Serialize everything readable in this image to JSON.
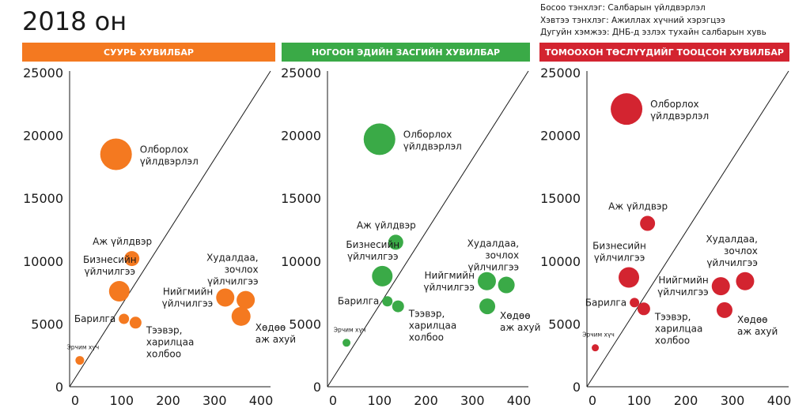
{
  "title": "2018 он",
  "legend_notes": {
    "vertical_axis": "Босоо тэнхлэг: Салбарын үйлдвэрлэл",
    "horizontal_axis": "Хэвтээ тэнхлэг: Ажиллах хүчний хэрэгцээ",
    "circle_size": "Дугуйн хэмжээ: ДНБ-д эзлэх тухайн салбарын хувь"
  },
  "chart_data": [
    {
      "type": "scatter",
      "title": "СУУРЬ ХУВИЛБАР",
      "header_color": "#f47920",
      "point_color": "#f47920",
      "xlim": [
        0,
        400
      ],
      "ylim": [
        0,
        25000
      ],
      "xticks": [
        0,
        100,
        200,
        300,
        400
      ],
      "yticks": [
        0,
        5000,
        10000,
        15000,
        20000,
        25000
      ],
      "diagonal": true,
      "points": [
        {
          "label": "Олборлох\nүйлдвэрлэл",
          "x": 88,
          "y": 18500,
          "size": 20,
          "label_pos": "right"
        },
        {
          "label": "Аж үйлдвэр",
          "x": 122,
          "y": 10200,
          "size": 9.5,
          "label_pos": "top-left"
        },
        {
          "label": "Бизнесийн\nүйлчилгээ",
          "x": 95,
          "y": 7600,
          "size": 13,
          "label_pos": "top-left"
        },
        {
          "label": "Барилга",
          "x": 105,
          "y": 5400,
          "size": 6.5,
          "label_pos": "left"
        },
        {
          "label": "Тээвэр,\nхарилцаа\nхолбоо",
          "x": 130,
          "y": 5100,
          "size": 7.5,
          "label_pos": "bottom-right"
        },
        {
          "label": "Эрчим хүч",
          "x": 10,
          "y": 2100,
          "size": 5.5,
          "label_pos": "top-small"
        },
        {
          "label": "Нийгмийн\nүйлчилгээ",
          "x": 323,
          "y": 7100,
          "size": 11.5,
          "label_pos": "left"
        },
        {
          "label": "Худалдаа,\nзочлох\nүйлчилгээ",
          "x": 367,
          "y": 6900,
          "size": 11.5,
          "label_pos": "top-right"
        },
        {
          "label": "Хөдөө\nаж ахуй",
          "x": 357,
          "y": 5600,
          "size": 12,
          "label_pos": "bottom-right"
        }
      ]
    },
    {
      "type": "scatter",
      "title": "НОГООН ЭДИЙН ЗАСГИЙН ХУВИЛБАР",
      "header_color": "#3aaa47",
      "point_color": "#3aaa47",
      "xlim": [
        0,
        400
      ],
      "ylim": [
        0,
        25000
      ],
      "xticks": [
        0,
        100,
        200,
        300,
        400
      ],
      "yticks": [
        0,
        5000,
        10000,
        15000,
        20000,
        25000
      ],
      "diagonal": true,
      "points": [
        {
          "label": "Олборлох\nүйлдвэрлэл",
          "x": 100,
          "y": 19700,
          "size": 20,
          "label_pos": "right"
        },
        {
          "label": "Аж үйлдвэр",
          "x": 135,
          "y": 11500,
          "size": 9.5,
          "label_pos": "top-left"
        },
        {
          "label": "Бизнесийн\nүйлчилгээ",
          "x": 106,
          "y": 8800,
          "size": 13,
          "label_pos": "top-left"
        },
        {
          "label": "Барилга",
          "x": 117,
          "y": 6800,
          "size": 6.5,
          "label_pos": "left"
        },
        {
          "label": "Тээвэр,\nхарилцаа\nхолбоо",
          "x": 140,
          "y": 6400,
          "size": 7.5,
          "label_pos": "bottom-right"
        },
        {
          "label": "Эрчим хүч",
          "x": 29,
          "y": 3500,
          "size": 5,
          "label_pos": "top-small"
        },
        {
          "label": "Нийгмийн\nүйлчилгээ",
          "x": 331,
          "y": 8400,
          "size": 11.5,
          "label_pos": "left"
        },
        {
          "label": "Худалдаа,\nзочлох\nүйлчилгээ",
          "x": 373,
          "y": 8100,
          "size": 10.5,
          "label_pos": "top-right"
        },
        {
          "label": "Хөдөө\nаж ахуй",
          "x": 332,
          "y": 6400,
          "size": 10,
          "label_pos": "bottom-right"
        }
      ]
    },
    {
      "type": "scatter",
      "title": "ТОМООХОН ТӨСЛҮҮДИЙГ ТООЦСОН ХУВИЛБАР",
      "header_color": "#d32430",
      "point_color": "#d32430",
      "xlim": [
        0,
        400
      ],
      "ylim": [
        0,
        25000
      ],
      "xticks": [
        0,
        100,
        200,
        300,
        400
      ],
      "yticks": [
        0,
        5000,
        10000,
        15000,
        20000,
        25000
      ],
      "diagonal": true,
      "points": [
        {
          "label": "Олборлох\nүйлдвэрлэл",
          "x": 73,
          "y": 22100,
          "size": 20,
          "label_pos": "right"
        },
        {
          "label": "Аж үйлдвэр",
          "x": 118,
          "y": 13000,
          "size": 9.5,
          "label_pos": "top-left"
        },
        {
          "label": "Бизнесийн\nүйлчилгээ",
          "x": 78,
          "y": 8700,
          "size": 13,
          "label_pos": "top-left"
        },
        {
          "label": "Барилга",
          "x": 90,
          "y": 6700,
          "size": 6,
          "label_pos": "left"
        },
        {
          "label": "Тээвэр,\nхарилцаа\nхолбоо",
          "x": 110,
          "y": 6200,
          "size": 8,
          "label_pos": "bottom-right"
        },
        {
          "label": "Эрчим хүч",
          "x": 6,
          "y": 3100,
          "size": 4.5,
          "label_pos": "top-small"
        },
        {
          "label": "Нийгмийн\nүйлчилгээ",
          "x": 275,
          "y": 8000,
          "size": 11.5,
          "label_pos": "left"
        },
        {
          "label": "Худалдаа,\nзочлох\nүйлчилгээ",
          "x": 327,
          "y": 8400,
          "size": 11.5,
          "label_pos": "top-right"
        },
        {
          "label": "Хөдөө\nаж ахуй",
          "x": 283,
          "y": 6100,
          "size": 10,
          "label_pos": "bottom-right"
        }
      ]
    }
  ]
}
